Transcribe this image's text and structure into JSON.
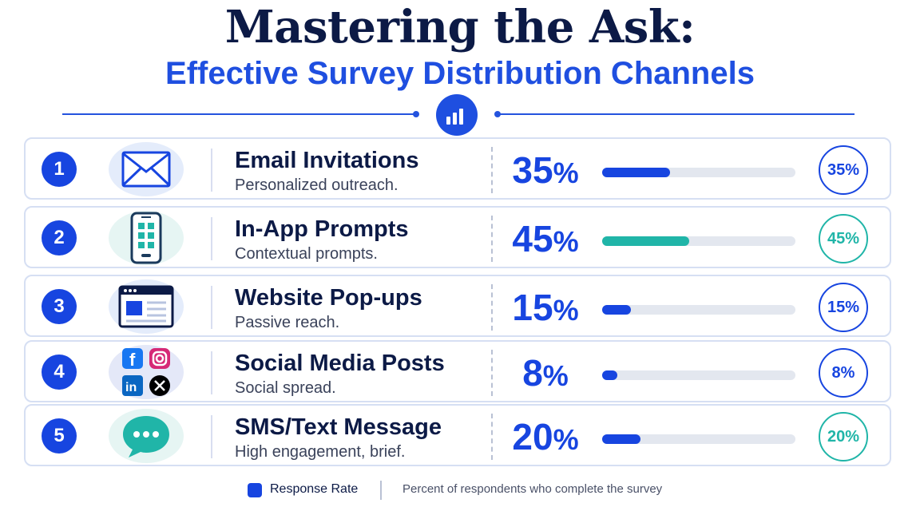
{
  "header": {
    "title": "Mastering the Ask:",
    "subtitle": "Effective Survey Distribution Channels",
    "badge_icon": "bar-chart-icon"
  },
  "colors": {
    "primary": "#1745e0",
    "teal": "#20b5a8",
    "title": "#0c1a46",
    "subtitle": "#1f4fe0",
    "track": "#e3e7ef"
  },
  "chart_data": {
    "type": "bar",
    "title": "Mastering the Ask:",
    "subtitle": "Effective Survey Distribution Channels",
    "xlabel": "",
    "ylabel": "",
    "ylim": [
      0,
      100
    ],
    "categories": [
      "Email Invitations",
      "In-App Prompts",
      "Website Pop-ups",
      "Social Media Posts",
      "SMS/Text Message"
    ],
    "series": [
      {
        "name": "Response Rate",
        "values": [
          35,
          45,
          15,
          8,
          20
        ]
      }
    ],
    "rows": [
      {
        "rank": "1",
        "name": "Email Invitations",
        "desc": "Personalized outreach.",
        "value": 35,
        "label": "35",
        "ring_label": "35%",
        "color": "#1745e0",
        "icon": "envelope-icon",
        "icon_bg": "#e4ecfb"
      },
      {
        "rank": "2",
        "name": "In-App Prompts",
        "desc": "Contextual prompts.",
        "value": 45,
        "label": "45",
        "ring_label": "45%",
        "color": "#20b5a8",
        "icon": "smartphone-icon",
        "icon_bg": "#e6f5f3"
      },
      {
        "rank": "3",
        "name": "Website Pop-ups",
        "desc": "Passive reach.",
        "value": 15,
        "label": "15",
        "ring_label": "15%",
        "color": "#1745e0",
        "icon": "browser-window-icon",
        "icon_bg": "#e4ecfb"
      },
      {
        "rank": "4",
        "name": "Social Media Posts",
        "desc": "Social spread.",
        "value": 8,
        "label": "8",
        "ring_label": "8%",
        "color": "#1745e0",
        "icon": "social-media-icons",
        "icon_bg": "#e4e8f8"
      },
      {
        "rank": "5",
        "name": "SMS/Text Message",
        "desc": "High engagement, brief.",
        "value": 20,
        "label": "20",
        "ring_label": "20%",
        "color": "#1745e0",
        "ring_color": "#20b5a8",
        "icon": "chat-bubble-icon",
        "icon_bg": "#e6f5f3"
      }
    ],
    "legend": {
      "label": "Response Rate",
      "note": "Percent of respondents who complete the survey"
    },
    "grid": false
  }
}
